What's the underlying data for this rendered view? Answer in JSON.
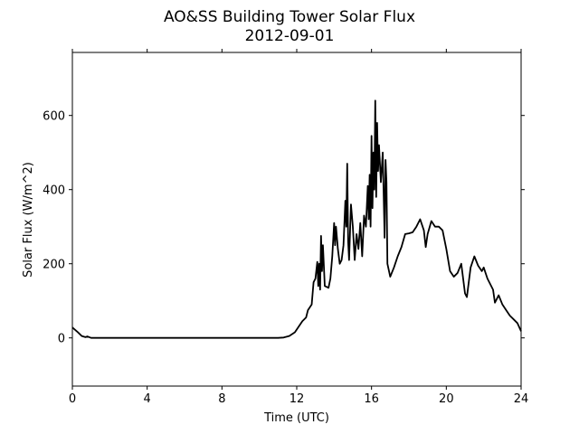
{
  "chart_data": {
    "type": "line",
    "title": "AO&SS Building Tower Solar Flux",
    "subtitle": "2012-09-01",
    "x_label": "Time (UTC)",
    "y_label": "Solar Flux (W/m^2)",
    "xlim": [
      0,
      24
    ],
    "xticks": [
      0,
      4,
      8,
      12,
      16,
      20,
      24
    ],
    "ylim": [
      -130,
      770
    ],
    "yticks": [
      0,
      200,
      400,
      600
    ],
    "grid": false,
    "series": [
      {
        "name": "Solar Flux",
        "color": "#000000",
        "x": [
          0,
          0.3,
          0.5,
          0.7,
          0.8,
          1,
          11,
          11.3,
          11.6,
          11.9,
          12.1,
          12.3,
          12.5,
          12.6,
          12.8,
          12.9,
          13.0,
          13.1,
          13.15,
          13.2,
          13.25,
          13.3,
          13.35,
          13.4,
          13.5,
          13.7,
          13.8,
          13.9,
          14.0,
          14.05,
          14.1,
          14.2,
          14.3,
          14.4,
          14.5,
          14.6,
          14.65,
          14.7,
          14.75,
          14.8,
          14.9,
          15.0,
          15.1,
          15.2,
          15.3,
          15.4,
          15.5,
          15.6,
          15.7,
          15.8,
          15.85,
          15.9,
          15.95,
          16.0,
          16.05,
          16.1,
          16.15,
          16.2,
          16.25,
          16.3,
          16.35,
          16.4,
          16.5,
          16.6,
          16.7,
          16.75,
          16.8,
          16.85,
          17.0,
          17.2,
          17.4,
          17.6,
          17.8,
          18.0,
          18.2,
          18.4,
          18.6,
          18.8,
          18.9,
          19.0,
          19.2,
          19.4,
          19.6,
          19.8,
          20.0,
          20.2,
          20.4,
          20.6,
          20.8,
          21.0,
          21.1,
          21.3,
          21.5,
          21.7,
          21.9,
          22.0,
          22.2,
          22.5,
          22.6,
          22.8,
          23.0,
          23.2,
          23.4,
          23.6,
          23.8,
          24.0
        ],
        "values": [
          28,
          15,
          5,
          2,
          4,
          0,
          0,
          1,
          5,
          15,
          30,
          45,
          55,
          75,
          90,
          150,
          160,
          205,
          140,
          200,
          130,
          275,
          180,
          250,
          140,
          135,
          160,
          220,
          310,
          250,
          300,
          240,
          200,
          210,
          250,
          370,
          300,
          470,
          260,
          210,
          360,
          300,
          210,
          280,
          240,
          310,
          220,
          330,
          300,
          410,
          320,
          440,
          300,
          545,
          350,
          500,
          400,
          640,
          380,
          580,
          450,
          520,
          420,
          500,
          270,
          480,
          420,
          200,
          165,
          190,
          220,
          245,
          280,
          282,
          285,
          300,
          320,
          290,
          245,
          280,
          315,
          300,
          300,
          290,
          240,
          180,
          165,
          175,
          200,
          120,
          110,
          190,
          220,
          195,
          180,
          190,
          160,
          130,
          95,
          115,
          90,
          75,
          60,
          50,
          40,
          18
        ]
      }
    ]
  }
}
